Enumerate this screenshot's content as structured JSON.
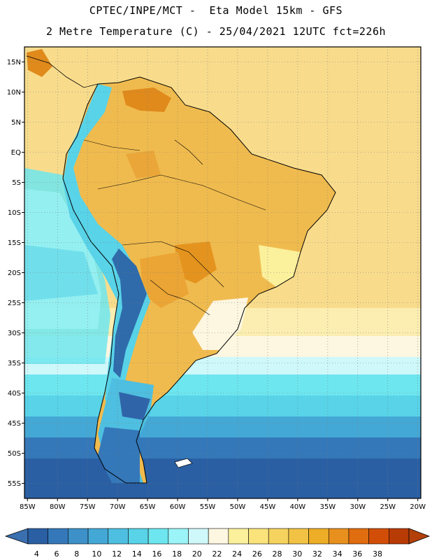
{
  "header": {
    "line1": "CPTEC/INPE/MCT -  Eta Model 15km - GFS",
    "line2": "2 Metre Temperature (C) - 25/04/2021 12UTC fct=226h"
  },
  "axes": {
    "lat_labels": [
      "15N",
      "10N",
      "5N",
      "EQ",
      "5S",
      "10S",
      "15S",
      "20S",
      "25S",
      "30S",
      "35S",
      "40S",
      "45S",
      "50S",
      "55S"
    ],
    "lat_values": [
      15,
      10,
      5,
      0,
      -5,
      -10,
      -15,
      -20,
      -25,
      -30,
      -35,
      -40,
      -45,
      -50,
      -55
    ],
    "lon_labels": [
      "85W",
      "80W",
      "75W",
      "70W",
      "65W",
      "60W",
      "55W",
      "50W",
      "45W",
      "40W",
      "35W",
      "30W",
      "25W",
      "20W"
    ],
    "lon_values": [
      -85,
      -80,
      -75,
      -70,
      -65,
      -60,
      -55,
      -50,
      -45,
      -40,
      -35,
      -30,
      -25,
      -20
    ],
    "lon_range": [
      -85.5,
      -19.5
    ],
    "lat_range": [
      -57.5,
      17.5
    ]
  },
  "colorbar": {
    "labels": [
      "4",
      "6",
      "8",
      "10",
      "12",
      "14",
      "16",
      "18",
      "20",
      "22",
      "24",
      "26",
      "28",
      "30",
      "32",
      "34",
      "36",
      "38"
    ],
    "colors": [
      "#2a5fa3",
      "#3478b9",
      "#3d91c8",
      "#44a8d6",
      "#4ebfe0",
      "#58d3e8",
      "#6de6ef",
      "#9bf4f7",
      "#cff8fa",
      "#fdf6e0",
      "#fbf09b",
      "#f9e37a",
      "#f5d35e",
      "#f1c244",
      "#edad26",
      "#e8901e",
      "#e06d10",
      "#d24e08",
      "#b83a05"
    ],
    "under_color": "#3a6fb0",
    "over_color": "#b3400a"
  },
  "field_colors": {
    "ocean_north": "#f6db8a",
    "ocean_south": "#2f64a8",
    "land_warm": "#efb64a"
  }
}
